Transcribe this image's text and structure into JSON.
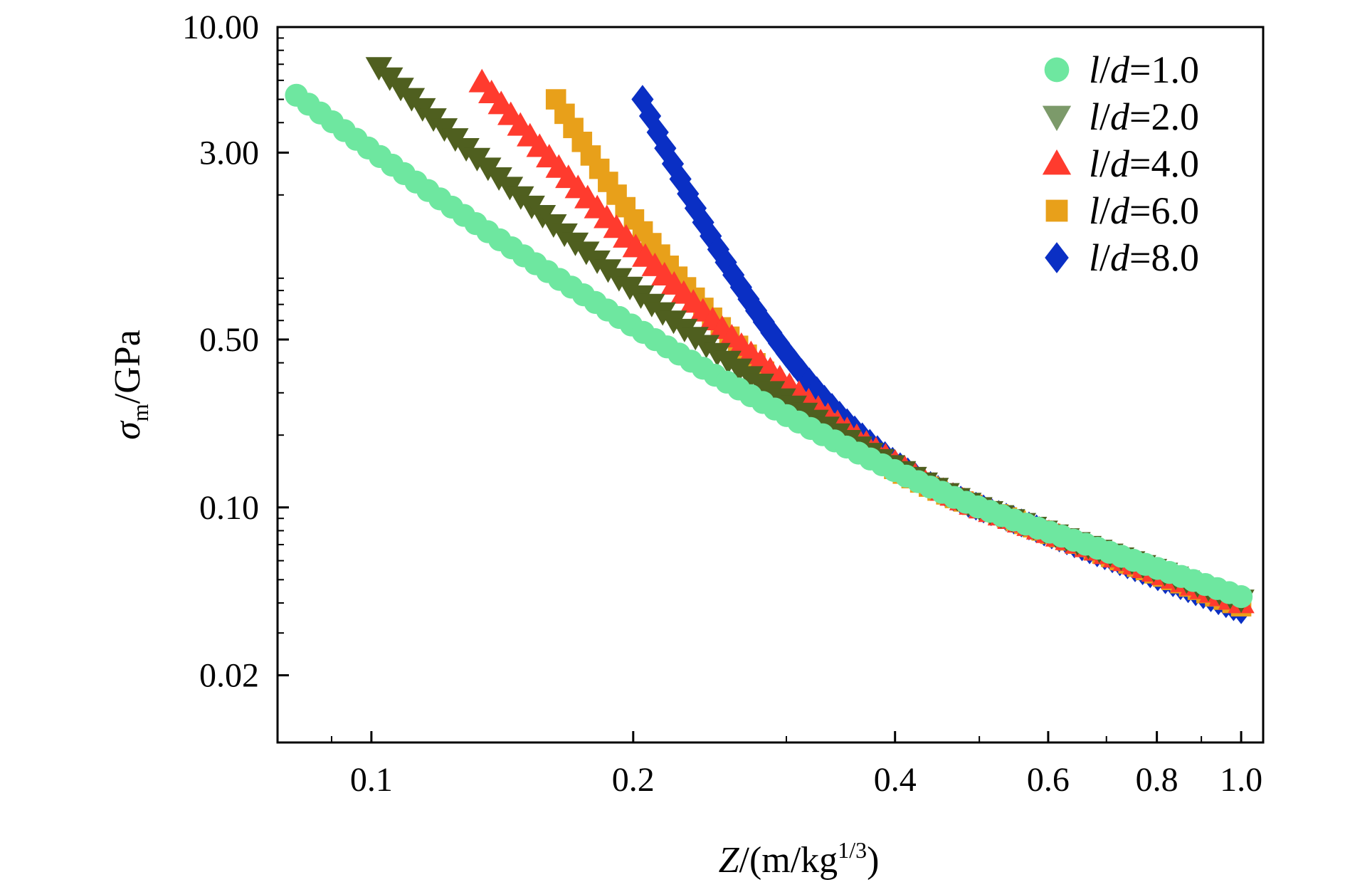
{
  "chart_data": {
    "type": "scatter",
    "xscale": "log",
    "yscale": "log",
    "xlim": [
      0.078,
      1.06
    ],
    "ylim": [
      0.0105,
      10.0
    ],
    "xticks": [
      {
        "value": 0.1,
        "label": "0.1"
      },
      {
        "value": 0.2,
        "label": "0.2"
      },
      {
        "value": 0.4,
        "label": "0.4"
      },
      {
        "value": 0.6,
        "label": "0.6"
      },
      {
        "value": 0.8,
        "label": "0.8"
      },
      {
        "value": 1.0,
        "label": "1.0"
      }
    ],
    "yticks": [
      {
        "value": 10.0,
        "label": "10.00"
      },
      {
        "value": 3.0,
        "label": "3.00"
      },
      {
        "value": 0.5,
        "label": "0.50"
      },
      {
        "value": 0.1,
        "label": "0.10"
      },
      {
        "value": 0.02,
        "label": "0.02"
      }
    ],
    "xlabel": {
      "var": "Z",
      "unit": "/(m/kg",
      "sup": "1/3",
      "close": ")"
    },
    "ylabel": {
      "var": "σ",
      "sub": "m",
      "unit": "/GPa"
    },
    "legend_position": "top-right",
    "series": [
      {
        "name": {
          "l": "l",
          "slash": "/",
          "d": "d",
          "value": "=1.0"
        },
        "marker": "circle",
        "color": "#6ee7a0",
        "start": 0.082,
        "peak": 5.2
      },
      {
        "name": {
          "l": "l",
          "slash": "/",
          "d": "d",
          "value": "=2.0"
        },
        "marker": "triangle-down",
        "color": "#4f5f1f",
        "legend_color": "#7c9a6a",
        "start": 0.102,
        "peak": 6.8
      },
      {
        "name": {
          "l": "l",
          "slash": "/",
          "d": "d",
          "value": "=4.0"
        },
        "marker": "triangle-up",
        "color": "#ff3b2e",
        "start": 0.134,
        "peak": 5.9
      },
      {
        "name": {
          "l": "l",
          "slash": "/",
          "d": "d",
          "value": "=6.0"
        },
        "marker": "square",
        "color": "#e8a01a",
        "start": 0.163,
        "peak": 5.0
      },
      {
        "name": {
          "l": "l",
          "slash": "/",
          "d": "d",
          "value": "=8.0"
        },
        "marker": "diamond",
        "color": "#0a2fc4",
        "start": 0.205,
        "peak": 5.0
      }
    ],
    "tail_values": {
      "z": [
        0.5,
        1.0
      ],
      "sigma": [
        0.1,
        0.04
      ]
    }
  }
}
